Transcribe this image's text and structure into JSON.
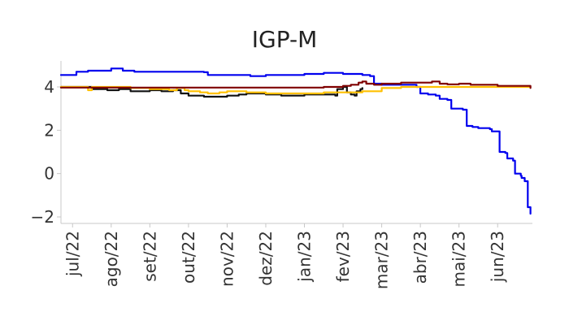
{
  "chart_data": {
    "type": "line",
    "title": "IGP-M",
    "xlabel": "",
    "ylabel": "",
    "grid": false,
    "ylim": [
      -2.3,
      5.2
    ],
    "yticks": [
      -2,
      0,
      2,
      4
    ],
    "yticklabels": [
      "−2",
      "0",
      "2",
      "4"
    ],
    "xlim": [
      -0.3,
      11.9
    ],
    "xticks": [
      0,
      1,
      2,
      3,
      4,
      5,
      6,
      7,
      8,
      9,
      10,
      11
    ],
    "xticklabels": [
      "jul/22",
      "ago/22",
      "set/22",
      "out/22",
      "nov/22",
      "dez/22",
      "jan/23",
      "fev/23",
      "mar/23",
      "abr/23",
      "mai/23",
      "jun/23"
    ],
    "series": [
      {
        "name": "blue",
        "color": "#0000ee",
        "x": [
          -0.3,
          -0.05,
          0.1,
          0.4,
          0.9,
          1.0,
          1.3,
          1.6,
          2.0,
          2.8,
          3.4,
          3.5,
          4.0,
          4.6,
          5.0,
          5.4,
          6.0,
          6.5,
          7.0,
          7.5,
          7.7,
          7.8,
          8.0,
          8.4,
          8.9,
          9.0,
          9.2,
          9.4,
          9.5,
          9.7,
          9.8,
          10.1,
          10.2,
          10.35,
          10.5,
          10.8,
          10.85,
          11.0,
          11.05,
          11.2,
          11.25,
          11.4,
          11.45,
          11.6,
          11.62,
          11.7,
          11.78,
          11.85
        ],
        "y": [
          4.55,
          4.55,
          4.7,
          4.75,
          4.75,
          4.85,
          4.75,
          4.7,
          4.7,
          4.7,
          4.68,
          4.55,
          4.55,
          4.5,
          4.55,
          4.55,
          4.6,
          4.65,
          4.6,
          4.55,
          4.5,
          4.15,
          4.1,
          4.1,
          4.0,
          3.7,
          3.65,
          3.6,
          3.45,
          3.4,
          3.0,
          2.95,
          2.2,
          2.15,
          2.1,
          2.05,
          1.95,
          1.95,
          1.0,
          0.95,
          0.7,
          0.6,
          0.0,
          -0.1,
          -0.2,
          -0.35,
          -1.55,
          -1.85
        ]
      },
      {
        "name": "black",
        "color": "#111111",
        "x": [
          -0.3,
          0.2,
          0.5,
          0.9,
          1.0,
          1.2,
          1.5,
          2.0,
          2.3,
          2.6,
          2.8,
          3.0,
          3.2,
          3.4,
          3.7,
          4.0,
          4.3,
          4.5,
          4.8,
          5.0,
          5.4,
          5.8,
          6.0,
          6.4,
          6.8,
          6.85,
          7.0,
          7.1,
          7.2,
          7.3,
          7.35,
          7.45,
          7.5
        ],
        "y": [
          4.0,
          4.0,
          3.9,
          3.85,
          3.85,
          3.9,
          3.8,
          3.85,
          3.8,
          3.85,
          3.7,
          3.6,
          3.6,
          3.55,
          3.55,
          3.6,
          3.65,
          3.7,
          3.7,
          3.65,
          3.6,
          3.6,
          3.65,
          3.65,
          3.6,
          3.9,
          4.0,
          3.75,
          3.65,
          3.6,
          3.8,
          3.9,
          3.95
        ]
      },
      {
        "name": "yellow",
        "color": "#ffc000",
        "x": [
          -0.3,
          0.2,
          0.4,
          0.5,
          1.0,
          1.5,
          2.0,
          2.5,
          2.7,
          2.9,
          3.0,
          3.3,
          3.5,
          3.8,
          4.0,
          4.5,
          5.0,
          5.5,
          6.0,
          6.5,
          7.0,
          7.5,
          8.0,
          8.5,
          9.0,
          10.0,
          11.0,
          11.85
        ],
        "y": [
          4.0,
          4.0,
          3.85,
          4.0,
          4.0,
          3.95,
          3.9,
          3.85,
          3.95,
          3.85,
          3.8,
          3.75,
          3.7,
          3.75,
          3.8,
          3.75,
          3.7,
          3.7,
          3.7,
          3.75,
          3.75,
          3.8,
          3.95,
          4.0,
          4.0,
          4.0,
          4.0,
          4.0
        ]
      },
      {
        "name": "darkred",
        "color": "#7f0000",
        "x": [
          -0.3,
          1.0,
          2.0,
          3.0,
          4.0,
          5.0,
          6.0,
          6.5,
          7.0,
          7.2,
          7.4,
          7.5,
          7.6,
          7.8,
          8.0,
          8.5,
          9.0,
          9.3,
          9.5,
          9.7,
          10.0,
          10.3,
          10.6,
          11.0,
          11.4,
          11.85
        ],
        "y": [
          3.97,
          3.97,
          3.97,
          3.97,
          3.97,
          3.97,
          3.97,
          4.0,
          4.05,
          4.1,
          4.2,
          4.25,
          4.15,
          4.1,
          4.15,
          4.2,
          4.2,
          4.25,
          4.15,
          4.12,
          4.15,
          4.1,
          4.1,
          4.05,
          4.05,
          3.95
        ]
      }
    ]
  }
}
